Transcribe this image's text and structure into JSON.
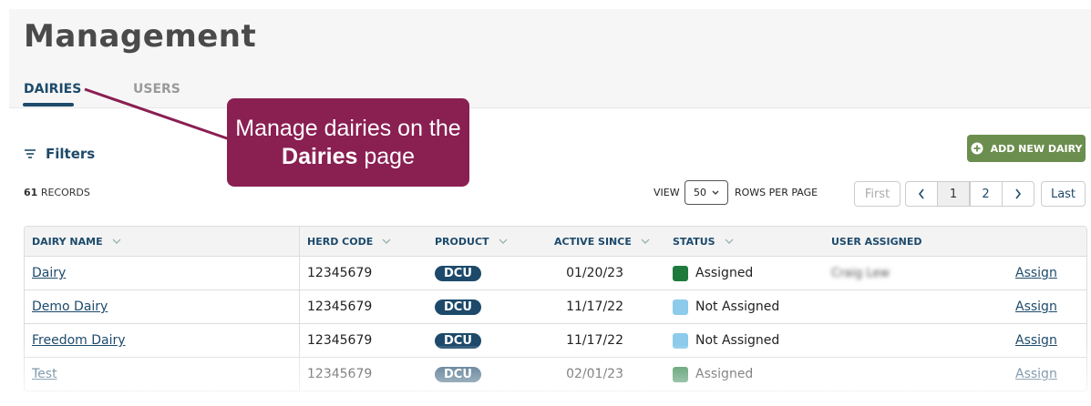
{
  "header": {
    "title": "Management"
  },
  "tabs": [
    {
      "label": "DAIRIES",
      "active": true
    },
    {
      "label": "USERS",
      "active": false
    }
  ],
  "callout": {
    "text_before": "Manage dairies on the",
    "bold": "Dairies",
    "text_after": "page"
  },
  "toolbar": {
    "filters": "Filters",
    "add_button": "ADD NEW DAIRY",
    "record_count": "61",
    "record_label": "RECORDS",
    "view_label": "VIEW",
    "rows_per_page": "50",
    "rows_label": "ROWS PER PAGE"
  },
  "pagination": {
    "first": "First",
    "pages": [
      "1",
      "2"
    ],
    "current": "1",
    "last": "Last"
  },
  "table": {
    "columns": [
      "DAIRY NAME",
      "HERD CODE",
      "PRODUCT",
      "ACTIVE SINCE",
      "STATUS",
      "USER ASSIGNED"
    ],
    "rows": [
      {
        "name": "Dairy",
        "herd_code": "12345679",
        "product": "DCU",
        "active_since": "01/20/23",
        "status": "Assigned",
        "status_color": "#1e7a3c",
        "user": "Craig Lew",
        "action": "Assign"
      },
      {
        "name": "Demo Dairy",
        "herd_code": "12345679",
        "product": "DCU",
        "active_since": "11/17/22",
        "status": "Not Assigned",
        "status_color": "#8ccbea",
        "user": null,
        "action": "Assign"
      },
      {
        "name": "Freedom Dairy",
        "herd_code": "12345679",
        "product": "DCU",
        "active_since": "11/17/22",
        "status": "Not Assigned",
        "status_color": "#8ccbea",
        "user": null,
        "action": "Assign"
      },
      {
        "name": "Test",
        "herd_code": "12345679",
        "product": "DCU",
        "active_since": "02/01/23",
        "status": "Assigned",
        "status_color": "#1e7a3c",
        "user": null,
        "action": "Assign"
      }
    ]
  }
}
